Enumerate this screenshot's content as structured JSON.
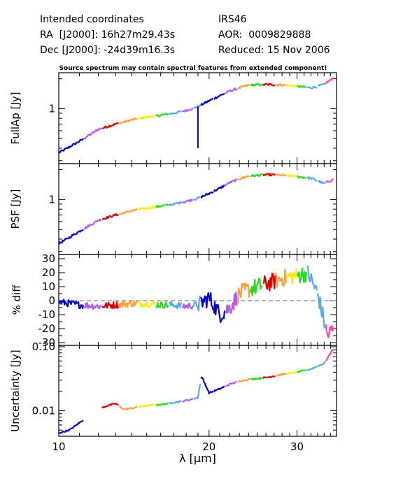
{
  "header": {
    "left": [
      "Intended coordinates",
      "RA  [J2000]: 16h27m29.43s",
      "Dec [J2000]: -24d39m16.3s"
    ],
    "right": [
      "IRS46",
      "AOR:  0009829888",
      "Reduced: 15 Nov 2006"
    ],
    "note": "Source spectrum may contain spectral features from extended component!"
  },
  "colors": {
    "segments": [
      "#0000cc",
      "#b45cf0",
      "#dd0000",
      "#ff9f3c",
      "#ffee00",
      "#22dd22",
      "#55aaee",
      "#ff44aa"
    ],
    "zero_line": "#808080"
  },
  "chart_data": [
    {
      "type": "line",
      "ylabel": "FullAp [Jy]",
      "xscale": "log",
      "yscale": "log",
      "xlim": [
        10,
        36
      ],
      "ylim": [
        0.28,
        2.3
      ],
      "yticks": [
        {
          "v": 1,
          "label": "1"
        }
      ],
      "x": [
        10,
        11,
        12,
        13,
        14,
        15,
        16,
        17,
        18,
        19,
        20,
        21,
        22,
        23,
        24,
        26,
        28,
        30,
        32,
        34,
        35.5
      ],
      "y": [
        0.36,
        0.47,
        0.62,
        0.7,
        0.77,
        0.82,
        0.86,
        0.9,
        0.96,
        1.05,
        1.2,
        1.35,
        1.5,
        1.62,
        1.72,
        1.75,
        1.73,
        1.68,
        1.62,
        1.75,
        2.05
      ],
      "gap": {
        "x": 19.0,
        "y": 0.4
      }
    },
    {
      "type": "line",
      "ylabel": "PSF [Jy]",
      "xscale": "log",
      "yscale": "log",
      "xlim": [
        10,
        36
      ],
      "ylim": [
        0.28,
        2.3
      ],
      "yticks": [
        {
          "v": 1,
          "label": "1"
        }
      ],
      "x": [
        10,
        11,
        12,
        13,
        14,
        15,
        16,
        17,
        18,
        19,
        20,
        21,
        22,
        23,
        24,
        26,
        28,
        30,
        32,
        34,
        35.5
      ],
      "y": [
        0.36,
        0.48,
        0.62,
        0.7,
        0.77,
        0.82,
        0.86,
        0.9,
        0.96,
        1.03,
        1.15,
        1.3,
        1.48,
        1.62,
        1.72,
        1.78,
        1.76,
        1.7,
        1.64,
        1.45,
        1.6
      ],
      "gap": {
        "x": 33.5,
        "y": 0
      }
    },
    {
      "type": "line",
      "ylabel": "% diff",
      "xscale": "log",
      "yscale": "linear",
      "xlim": [
        10,
        36
      ],
      "ylim": [
        -32,
        33
      ],
      "yticks": [
        {
          "v": 30,
          "label": "30"
        },
        {
          "v": 20,
          "label": "20"
        },
        {
          "v": 10,
          "label": "10"
        },
        {
          "v": 0,
          "label": "0"
        },
        {
          "v": -10,
          "label": "-10"
        },
        {
          "v": -20,
          "label": "-20"
        },
        {
          "v": -30,
          "label": "-30"
        }
      ],
      "zero_line": 0,
      "x": [
        10,
        11,
        12,
        13,
        14,
        15,
        16,
        17,
        18,
        19,
        20,
        21,
        22,
        23,
        24,
        26,
        28,
        30,
        31.5,
        33,
        34.5,
        35.5
      ],
      "y": [
        -1,
        -3,
        -4,
        -3,
        -2,
        -2,
        -3,
        -3,
        -4,
        -3,
        2,
        -10,
        -5,
        5,
        8,
        12,
        16,
        18,
        20,
        5,
        -25,
        -20
      ],
      "noise": 5
    },
    {
      "type": "line",
      "ylabel": "Uncertainty [Jy]",
      "xscale": "log",
      "yscale": "log",
      "xlim": [
        10,
        36
      ],
      "ylim": [
        0.004,
        0.105
      ],
      "yticks": [
        {
          "v": 0.1,
          "label": "0.10"
        },
        {
          "v": 0.01,
          "label": "0.01"
        }
      ],
      "xticks": [
        {
          "v": 10,
          "label": "10"
        },
        {
          "v": 20,
          "label": "20"
        },
        {
          "v": 30,
          "label": "30"
        }
      ],
      "xlabel": "λ [μm]",
      "x": [
        10,
        10.5,
        11,
        11.5,
        12,
        12.5,
        13,
        13.5,
        14,
        15,
        16,
        17,
        18,
        19,
        19.3,
        20,
        21,
        22,
        23,
        24,
        26,
        28,
        30,
        32,
        34,
        35.5
      ],
      "y": [
        0.0045,
        0.005,
        0.0065,
        0.0085,
        0.0105,
        0.012,
        0.013,
        0.0105,
        0.011,
        0.012,
        0.0125,
        0.0135,
        0.0145,
        0.016,
        0.035,
        0.019,
        0.022,
        0.026,
        0.029,
        0.031,
        0.033,
        0.037,
        0.04,
        0.045,
        0.055,
        0.095
      ],
      "gap": {
        "x": 11.3,
        "y": 0
      }
    }
  ]
}
